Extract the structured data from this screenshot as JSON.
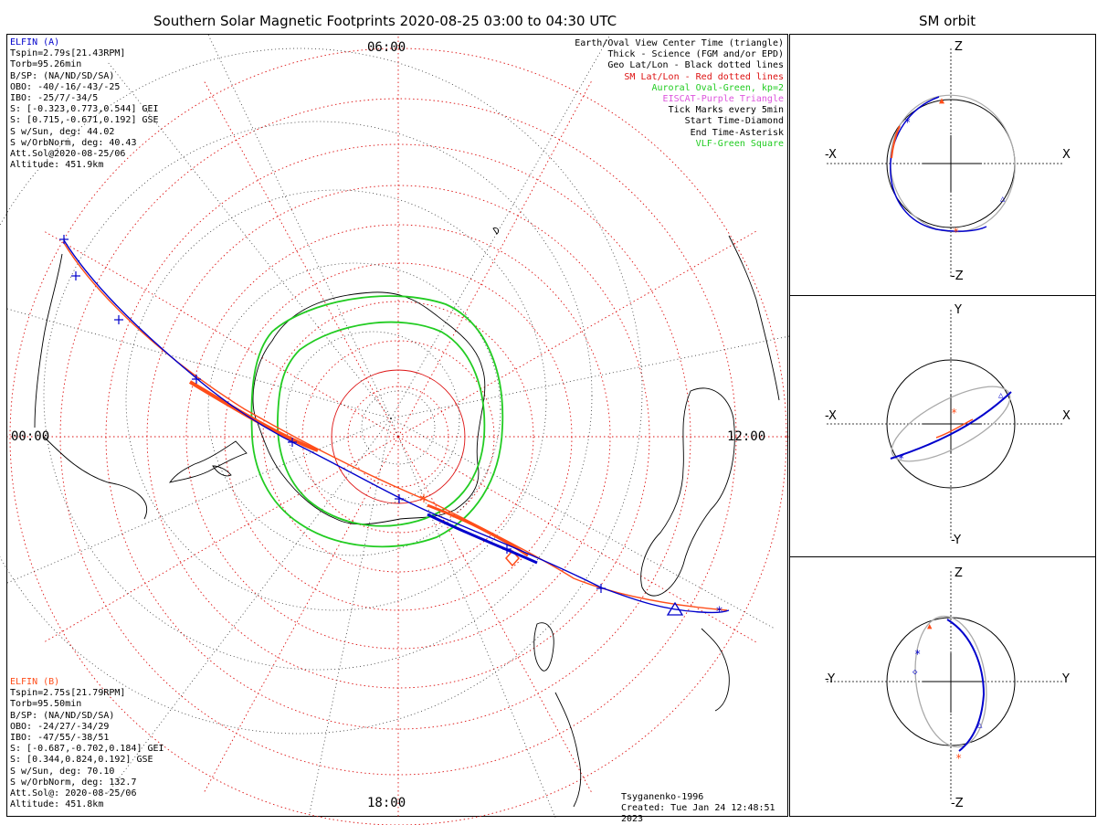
{
  "title": "Southern Solar Magnetic Footprints 2020-08-25 03:00 to 04:30 UTC",
  "side_title": "SM orbit",
  "colors": {
    "elfin_a": "#0000cc",
    "elfin_b": "#ff4d1a",
    "auroral": "#22cc22",
    "sm_grid": "#dd1111",
    "geo_grid": "#000000",
    "eiscat": "#dd55dd",
    "orbit_gray": "#aaaaaa"
  },
  "elfin_a": {
    "name": "ELFIN (A)",
    "lines": [
      "Tspin=2.79s[21.43RPM]",
      "Torb=95.26min",
      "B/SP: (NA/ND/SD/SA)",
      "OBO: -40/-16/-43/-25",
      "IBO: -25/7/-34/5",
      "S: [-0.323,0.773,0.544] GEI",
      "S: [0.715,-0.671,0.192] GSE",
      "S w/Sun, deg: 44.02",
      "S w/OrbNorm, deg: 40.43",
      "Att.Sol@2020-08-25/06",
      "Altitude: 451.9km"
    ]
  },
  "elfin_b": {
    "name": "ELFIN (B)",
    "lines": [
      "Tspin=2.75s[21.79RPM]",
      "Torb=95.50min",
      "B/SP: (NA/ND/SD/SA)",
      "OBO: -24/27/-34/29",
      "IBO: -47/55/-38/51",
      "S: [-0.687,-0.702,0.184] GEI",
      "S: [0.344,0.824,0.192] GSE",
      "S w/Sun, deg: 70.10",
      "S w/OrbNorm, deg: 132.7",
      "Att.Sol@: 2020-08-25/06",
      "Altitude: 451.8km"
    ]
  },
  "legend": [
    {
      "text": "Earth/Oval View Center Time (triangle)",
      "color": "#000000"
    },
    {
      "text": "Thick - Science (FGM and/or EPD)",
      "color": "#000000"
    },
    {
      "text": "Geo Lat/Lon - Black dotted lines",
      "color": "#000000"
    },
    {
      "text": "SM Lat/Lon - Red dotted lines",
      "color": "#dd1111"
    },
    {
      "text": "Auroral Oval-Green, kp=2",
      "color": "#22cc22"
    },
    {
      "text": "EISCAT-Purple Triangle",
      "color": "#dd55dd"
    },
    {
      "text": "Tick Marks every 5min",
      "color": "#000000"
    },
    {
      "text": "Start Time-Diamond",
      "color": "#000000"
    },
    {
      "text": "End Time-Asterisk",
      "color": "#000000"
    },
    {
      "text": "VLF-Green Square",
      "color": "#22cc22"
    }
  ],
  "time_labels": {
    "top": "06:00",
    "left": "00:00",
    "right": "12:00",
    "bottom": "18:00"
  },
  "credits": {
    "model": "Tsyganenko-1996",
    "created": "Created: Tue Jan 24 12:48:51 2023"
  },
  "orbit_panels": [
    {
      "up": "Z",
      "down": "-Z",
      "left": "-X",
      "right": "X"
    },
    {
      "up": "Y",
      "down": "-Y",
      "left": "-X",
      "right": "X"
    },
    {
      "up": "Z",
      "down": "-Z",
      "left": "-Y",
      "right": "Y"
    }
  ]
}
